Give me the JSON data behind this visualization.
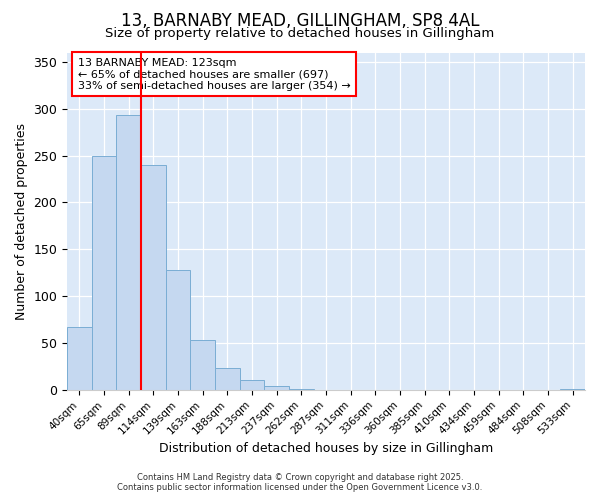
{
  "title_line1": "13, BARNABY MEAD, GILLINGHAM, SP8 4AL",
  "title_line2": "Size of property relative to detached houses in Gillingham",
  "xlabel": "Distribution of detached houses by size in Gillingham",
  "ylabel": "Number of detached properties",
  "categories": [
    "40sqm",
    "65sqm",
    "89sqm",
    "114sqm",
    "139sqm",
    "163sqm",
    "188sqm",
    "213sqm",
    "237sqm",
    "262sqm",
    "287sqm",
    "311sqm",
    "336sqm",
    "360sqm",
    "385sqm",
    "410sqm",
    "434sqm",
    "459sqm",
    "484sqm",
    "508sqm",
    "533sqm"
  ],
  "values": [
    67,
    250,
    293,
    240,
    128,
    53,
    23,
    10,
    4,
    1,
    0,
    0,
    0,
    0,
    0,
    0,
    0,
    0,
    0,
    0,
    1
  ],
  "bar_color": "#c5d8f0",
  "bar_edge_color": "#7aadd4",
  "red_line_x": 2.5,
  "ylim": [
    0,
    360
  ],
  "yticks": [
    0,
    50,
    100,
    150,
    200,
    250,
    300,
    350
  ],
  "annotation_title": "13 BARNABY MEAD: 123sqm",
  "annotation_line2": "← 65% of detached houses are smaller (697)",
  "annotation_line3": "33% of semi-detached houses are larger (354) →",
  "footer_line1": "Contains HM Land Registry data © Crown copyright and database right 2025.",
  "footer_line2": "Contains public sector information licensed under the Open Government Licence v3.0.",
  "fig_bg_color": "#ffffff",
  "plot_bg_color": "#dce9f8"
}
